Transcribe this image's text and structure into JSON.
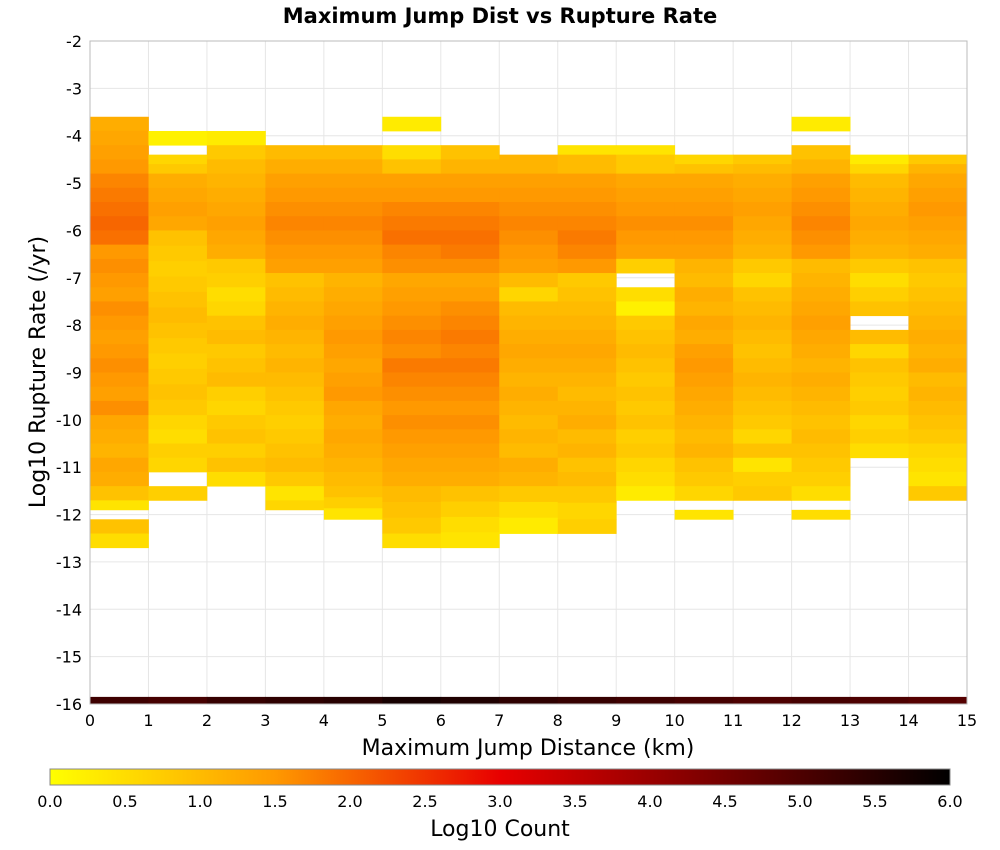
{
  "chart_data": {
    "type": "heatmap",
    "title": "Maximum Jump Dist vs Rupture Rate",
    "xlabel": "Maximum Jump Distance (km)",
    "ylabel": "Log10 Rupture Rate (/yr)",
    "xlim": [
      0,
      15
    ],
    "ylim": [
      -16,
      -2
    ],
    "x_ticks": [
      "0",
      "1",
      "2",
      "3",
      "4",
      "5",
      "6",
      "7",
      "8",
      "9",
      "10",
      "11",
      "12",
      "13",
      "14",
      "15"
    ],
    "y_ticks": [
      "-2",
      "-3",
      "-4",
      "-5",
      "-6",
      "-7",
      "-8",
      "-9",
      "-10",
      "-11",
      "-12",
      "-13",
      "-14",
      "-15",
      "-16"
    ],
    "grid": true,
    "bin_width_x": 1,
    "bin_height_y": 0.3,
    "colorbar": {
      "label": "Log10 Count",
      "range": [
        0,
        6
      ],
      "ticks": [
        "0.0",
        "0.5",
        "1.0",
        "1.5",
        "2.0",
        "2.5",
        "3.0",
        "3.5",
        "4.0",
        "4.5",
        "5.0",
        "5.5",
        "6.0"
      ],
      "colors": [
        "#ffff00",
        "#ff9900",
        "#e80000",
        "#000000"
      ]
    },
    "columns": [
      {
        "x": 0,
        "rows": [
          [
            -3.6,
            -4.8,
            [
              1.2,
              1.3,
              1.4,
              1.5
            ]
          ],
          [
            -4.8,
            -6.3,
            [
              1.7,
              1.8,
              1.9,
              2.0,
              1.9
            ]
          ],
          [
            -6.3,
            -9.9,
            [
              1.5,
              1.6,
              1.5,
              1.4,
              1.6,
              1.5,
              1.4,
              1.5,
              1.6,
              1.5,
              1.4,
              1.6
            ]
          ],
          [
            -9.9,
            -11.4,
            [
              1.3,
              1.2,
              1.1,
              1.3,
              1.2
            ]
          ],
          [
            -11.4,
            -11.7,
            [
              0.9
            ]
          ],
          [
            -11.7,
            -11.9,
            [
              0.4
            ]
          ],
          [
            -12.1,
            -12.4,
            [
              0.9
            ]
          ],
          [
            -12.4,
            -12.7,
            [
              0.5
            ]
          ]
        ]
      },
      {
        "x": 1,
        "rows": [
          [
            -3.9,
            -4.2,
            [
              0.2
            ]
          ],
          [
            -4.4,
            -4.8,
            [
              0.6,
              0.8
            ]
          ],
          [
            -4.8,
            -6.0,
            [
              1.2,
              1.3,
              1.4,
              1.3
            ]
          ],
          [
            -6.0,
            -9.9,
            [
              0.9,
              0.8,
              0.7,
              0.8,
              0.9,
              1.0,
              0.9,
              0.8,
              0.7,
              0.8,
              0.9,
              0.8
            ]
          ],
          [
            -9.9,
            -11.1,
            [
              0.6,
              0.5,
              0.7,
              0.6
            ]
          ],
          [
            -11.4,
            -11.7,
            [
              0.7
            ]
          ]
        ]
      },
      {
        "x": 2,
        "rows": [
          [
            -3.9,
            -4.2,
            [
              0.3
            ]
          ],
          [
            -4.2,
            -4.8,
            [
              0.8,
              1.0
            ]
          ],
          [
            -4.8,
            -6.6,
            [
              1.1,
              1.2,
              1.3,
              1.4,
              1.3,
              1.2
            ]
          ],
          [
            -6.6,
            -10.8,
            [
              0.8,
              0.7,
              0.5,
              0.6,
              0.9,
              1.0,
              0.8,
              0.9,
              1.0,
              0.7,
              0.6,
              0.8,
              0.9,
              0.7
            ]
          ],
          [
            -10.8,
            -11.4,
            [
              0.9,
              0.5
            ]
          ]
        ]
      },
      {
        "x": 3,
        "rows": [
          [
            -4.2,
            -4.8,
            [
              1.0,
              1.2
            ]
          ],
          [
            -4.8,
            -6.9,
            [
              1.4,
              1.5,
              1.6,
              1.7,
              1.6,
              1.5,
              1.4
            ]
          ],
          [
            -6.9,
            -11.1,
            [
              0.9,
              1.0,
              1.1,
              1.2,
              1.1,
              1.0,
              1.1,
              1.0,
              0.9,
              0.8,
              0.7,
              0.8,
              0.9,
              1.0
            ]
          ],
          [
            -11.1,
            -11.7,
            [
              0.8,
              0.4
            ]
          ],
          [
            -11.7,
            -11.9,
            [
              0.6
            ]
          ]
        ]
      },
      {
        "x": 4,
        "rows": [
          [
            -4.2,
            -4.8,
            [
              1.0,
              1.2
            ]
          ],
          [
            -4.8,
            -6.9,
            [
              1.4,
              1.5,
              1.6,
              1.7,
              1.6,
              1.5,
              1.4
            ]
          ],
          [
            -6.9,
            -11.4,
            [
              1.1,
              1.2,
              1.3,
              1.4,
              1.5,
              1.4,
              1.3,
              1.4,
              1.5,
              1.3,
              1.2,
              1.3,
              1.2,
              1.1,
              1.0
            ]
          ],
          [
            -11.4,
            -12.1,
            [
              0.9,
              0.7,
              0.4
            ]
          ]
        ]
      },
      {
        "x": 5,
        "rows": [
          [
            -3.6,
            -3.9,
            [
              0.3
            ]
          ],
          [
            -4.2,
            -4.8,
            [
              0.5,
              0.9
            ]
          ],
          [
            -4.8,
            -6.9,
            [
              1.4,
              1.5,
              1.7,
              1.8,
              1.9,
              1.7,
              1.6
            ]
          ],
          [
            -6.9,
            -11.4,
            [
              1.3,
              1.4,
              1.5,
              1.6,
              1.7,
              1.6,
              1.8,
              1.7,
              1.6,
              1.5,
              1.6,
              1.5,
              1.4,
              1.3,
              1.2
            ]
          ],
          [
            -11.4,
            -12.4,
            [
              1.0,
              0.9,
              0.8
            ]
          ],
          [
            -12.4,
            -12.7,
            [
              0.5
            ]
          ]
        ]
      },
      {
        "x": 6,
        "rows": [
          [
            -4.2,
            -4.8,
            [
              0.9,
              1.1
            ]
          ],
          [
            -4.8,
            -6.9,
            [
              1.4,
              1.5,
              1.7,
              1.8,
              1.9,
              1.8,
              1.6
            ]
          ],
          [
            -6.9,
            -11.4,
            [
              1.3,
              1.4,
              1.6,
              1.7,
              1.8,
              1.7,
              1.8,
              1.7,
              1.6,
              1.5,
              1.6,
              1.5,
              1.4,
              1.3,
              1.2
            ]
          ],
          [
            -11.4,
            -12.7,
            [
              0.9,
              0.7,
              0.5,
              0.4
            ]
          ]
        ]
      },
      {
        "x": 7,
        "rows": [
          [
            -4.4,
            -4.8,
            [
              1.1
            ]
          ],
          [
            -4.8,
            -6.9,
            [
              1.4,
              1.5,
              1.6,
              1.7,
              1.6,
              1.5,
              1.4
            ]
          ],
          [
            -6.9,
            -7.5,
            [
              1.0,
              0.6
            ]
          ],
          [
            -7.5,
            -11.4,
            [
              1.0,
              1.1,
              1.2,
              1.3,
              1.2,
              1.1,
              1.2,
              1.1,
              1.0,
              1.1,
              1.0,
              1.2,
              1.1
            ]
          ],
          [
            -11.4,
            -12.4,
            [
              0.8,
              0.5,
              0.3
            ]
          ]
        ]
      },
      {
        "x": 8,
        "rows": [
          [
            -4.2,
            -4.4,
            [
              0.4
            ]
          ],
          [
            -4.4,
            -4.8,
            [
              1.0
            ]
          ],
          [
            -4.8,
            -6.9,
            [
              1.4,
              1.5,
              1.6,
              1.7,
              1.8,
              1.7,
              1.5
            ]
          ],
          [
            -6.9,
            -11.4,
            [
              0.8,
              0.9,
              1.0,
              1.1,
              1.2,
              1.3,
              1.2,
              1.1,
              1.0,
              1.1,
              1.2,
              1.0,
              1.1,
              0.9,
              1.0
            ]
          ],
          [
            -11.4,
            -12.1,
            [
              0.8,
              0.6
            ]
          ],
          [
            -12.1,
            -12.4,
            [
              0.7
            ]
          ]
        ]
      },
      {
        "x": 9,
        "rows": [
          [
            -4.2,
            -4.4,
            [
              0.4
            ]
          ],
          [
            -4.4,
            -4.8,
            [
              0.8
            ]
          ],
          [
            -4.8,
            -6.6,
            [
              1.3,
              1.4,
              1.5,
              1.6,
              1.5,
              1.4
            ]
          ],
          [
            -6.6,
            -6.9,
            [
              0.7
            ]
          ],
          [
            -7.2,
            -7.8,
            [
              0.5,
              0.2
            ]
          ],
          [
            -7.8,
            -11.4,
            [
              0.8,
              0.9,
              1.0,
              0.9,
              0.8,
              0.9,
              0.8,
              0.9,
              0.7,
              0.8,
              0.6,
              0.5
            ]
          ],
          [
            -11.4,
            -11.7,
            [
              0.3
            ]
          ]
        ]
      },
      {
        "x": 10,
        "rows": [
          [
            -4.4,
            -4.8,
            [
              0.6,
              0.9
            ]
          ],
          [
            -4.8,
            -6.6,
            [
              1.3,
              1.4,
              1.5,
              1.6,
              1.5,
              1.4
            ]
          ],
          [
            -6.6,
            -11.4,
            [
              1.1,
              1.0,
              1.2,
              1.1,
              1.3,
              1.2,
              1.4,
              1.5,
              1.4,
              1.3,
              1.2,
              1.1,
              1.0,
              1.1,
              0.9,
              0.8
            ]
          ],
          [
            -11.4,
            -11.7,
            [
              0.6
            ]
          ],
          [
            -11.9,
            -12.1,
            [
              0.4
            ]
          ]
        ]
      },
      {
        "x": 11,
        "rows": [
          [
            -4.4,
            -4.8,
            [
              0.8,
              1.0
            ]
          ],
          [
            -4.8,
            -6.6,
            [
              1.2,
              1.3,
              1.4,
              1.3,
              1.2,
              1.1
            ]
          ],
          [
            -6.6,
            -11.4,
            [
              0.8,
              0.6,
              0.9,
              1.0,
              1.1,
              1.0,
              0.9,
              1.0,
              1.1,
              1.0,
              0.9,
              0.8,
              0.6,
              0.9,
              0.4,
              0.7
            ]
          ],
          [
            -11.4,
            -11.7,
            [
              0.8
            ]
          ]
        ]
      },
      {
        "x": 12,
        "rows": [
          [
            -3.6,
            -3.9,
            [
              0.3
            ]
          ],
          [
            -4.2,
            -4.8,
            [
              0.9,
              1.1
            ]
          ],
          [
            -4.8,
            -6.6,
            [
              1.4,
              1.5,
              1.6,
              1.7,
              1.6,
              1.5
            ]
          ],
          [
            -6.6,
            -11.7,
            [
              1.0,
              1.1,
              1.2,
              1.3,
              1.4,
              1.3,
              1.2,
              1.1,
              1.2,
              1.1,
              1.0,
              0.9,
              1.0,
              0.9,
              0.8,
              0.7,
              0.5
            ]
          ],
          [
            -11.9,
            -12.1,
            [
              0.5
            ]
          ]
        ]
      },
      {
        "x": 13,
        "rows": [
          [
            -4.4,
            -4.8,
            [
              0.3,
              0.6
            ]
          ],
          [
            -4.8,
            -6.6,
            [
              1.0,
              1.1,
              1.2,
              1.3,
              1.2,
              1.1
            ]
          ],
          [
            -6.6,
            -7.8,
            [
              0.8,
              0.5,
              0.7,
              0.9
            ]
          ],
          [
            -8.1,
            -10.8,
            [
              1.0,
              0.6,
              0.9,
              0.8,
              0.7,
              0.8,
              0.6,
              0.7,
              0.5
            ]
          ]
        ]
      },
      {
        "x": 14,
        "rows": [
          [
            -4.4,
            -4.8,
            [
              0.8,
              1.1
            ]
          ],
          [
            -4.8,
            -6.6,
            [
              1.3,
              1.4,
              1.5,
              1.4,
              1.3,
              1.2
            ]
          ],
          [
            -6.6,
            -11.7,
            [
              0.9,
              0.8,
              0.9,
              1.0,
              1.1,
              1.2,
              1.1,
              1.2,
              1.0,
              1.1,
              1.0,
              0.9,
              0.8,
              0.6,
              0.5,
              0.4,
              0.8
            ]
          ]
        ]
      }
    ],
    "bottom_row": {
      "y0": -15.85,
      "y1": -16.0,
      "values": [
        5.2,
        5.1,
        5.3,
        5.4,
        5.5,
        5.7,
        5.6,
        5.4,
        5.3,
        5.2,
        5.1,
        5.0,
        5.1,
        5.0,
        4.9
      ]
    }
  }
}
